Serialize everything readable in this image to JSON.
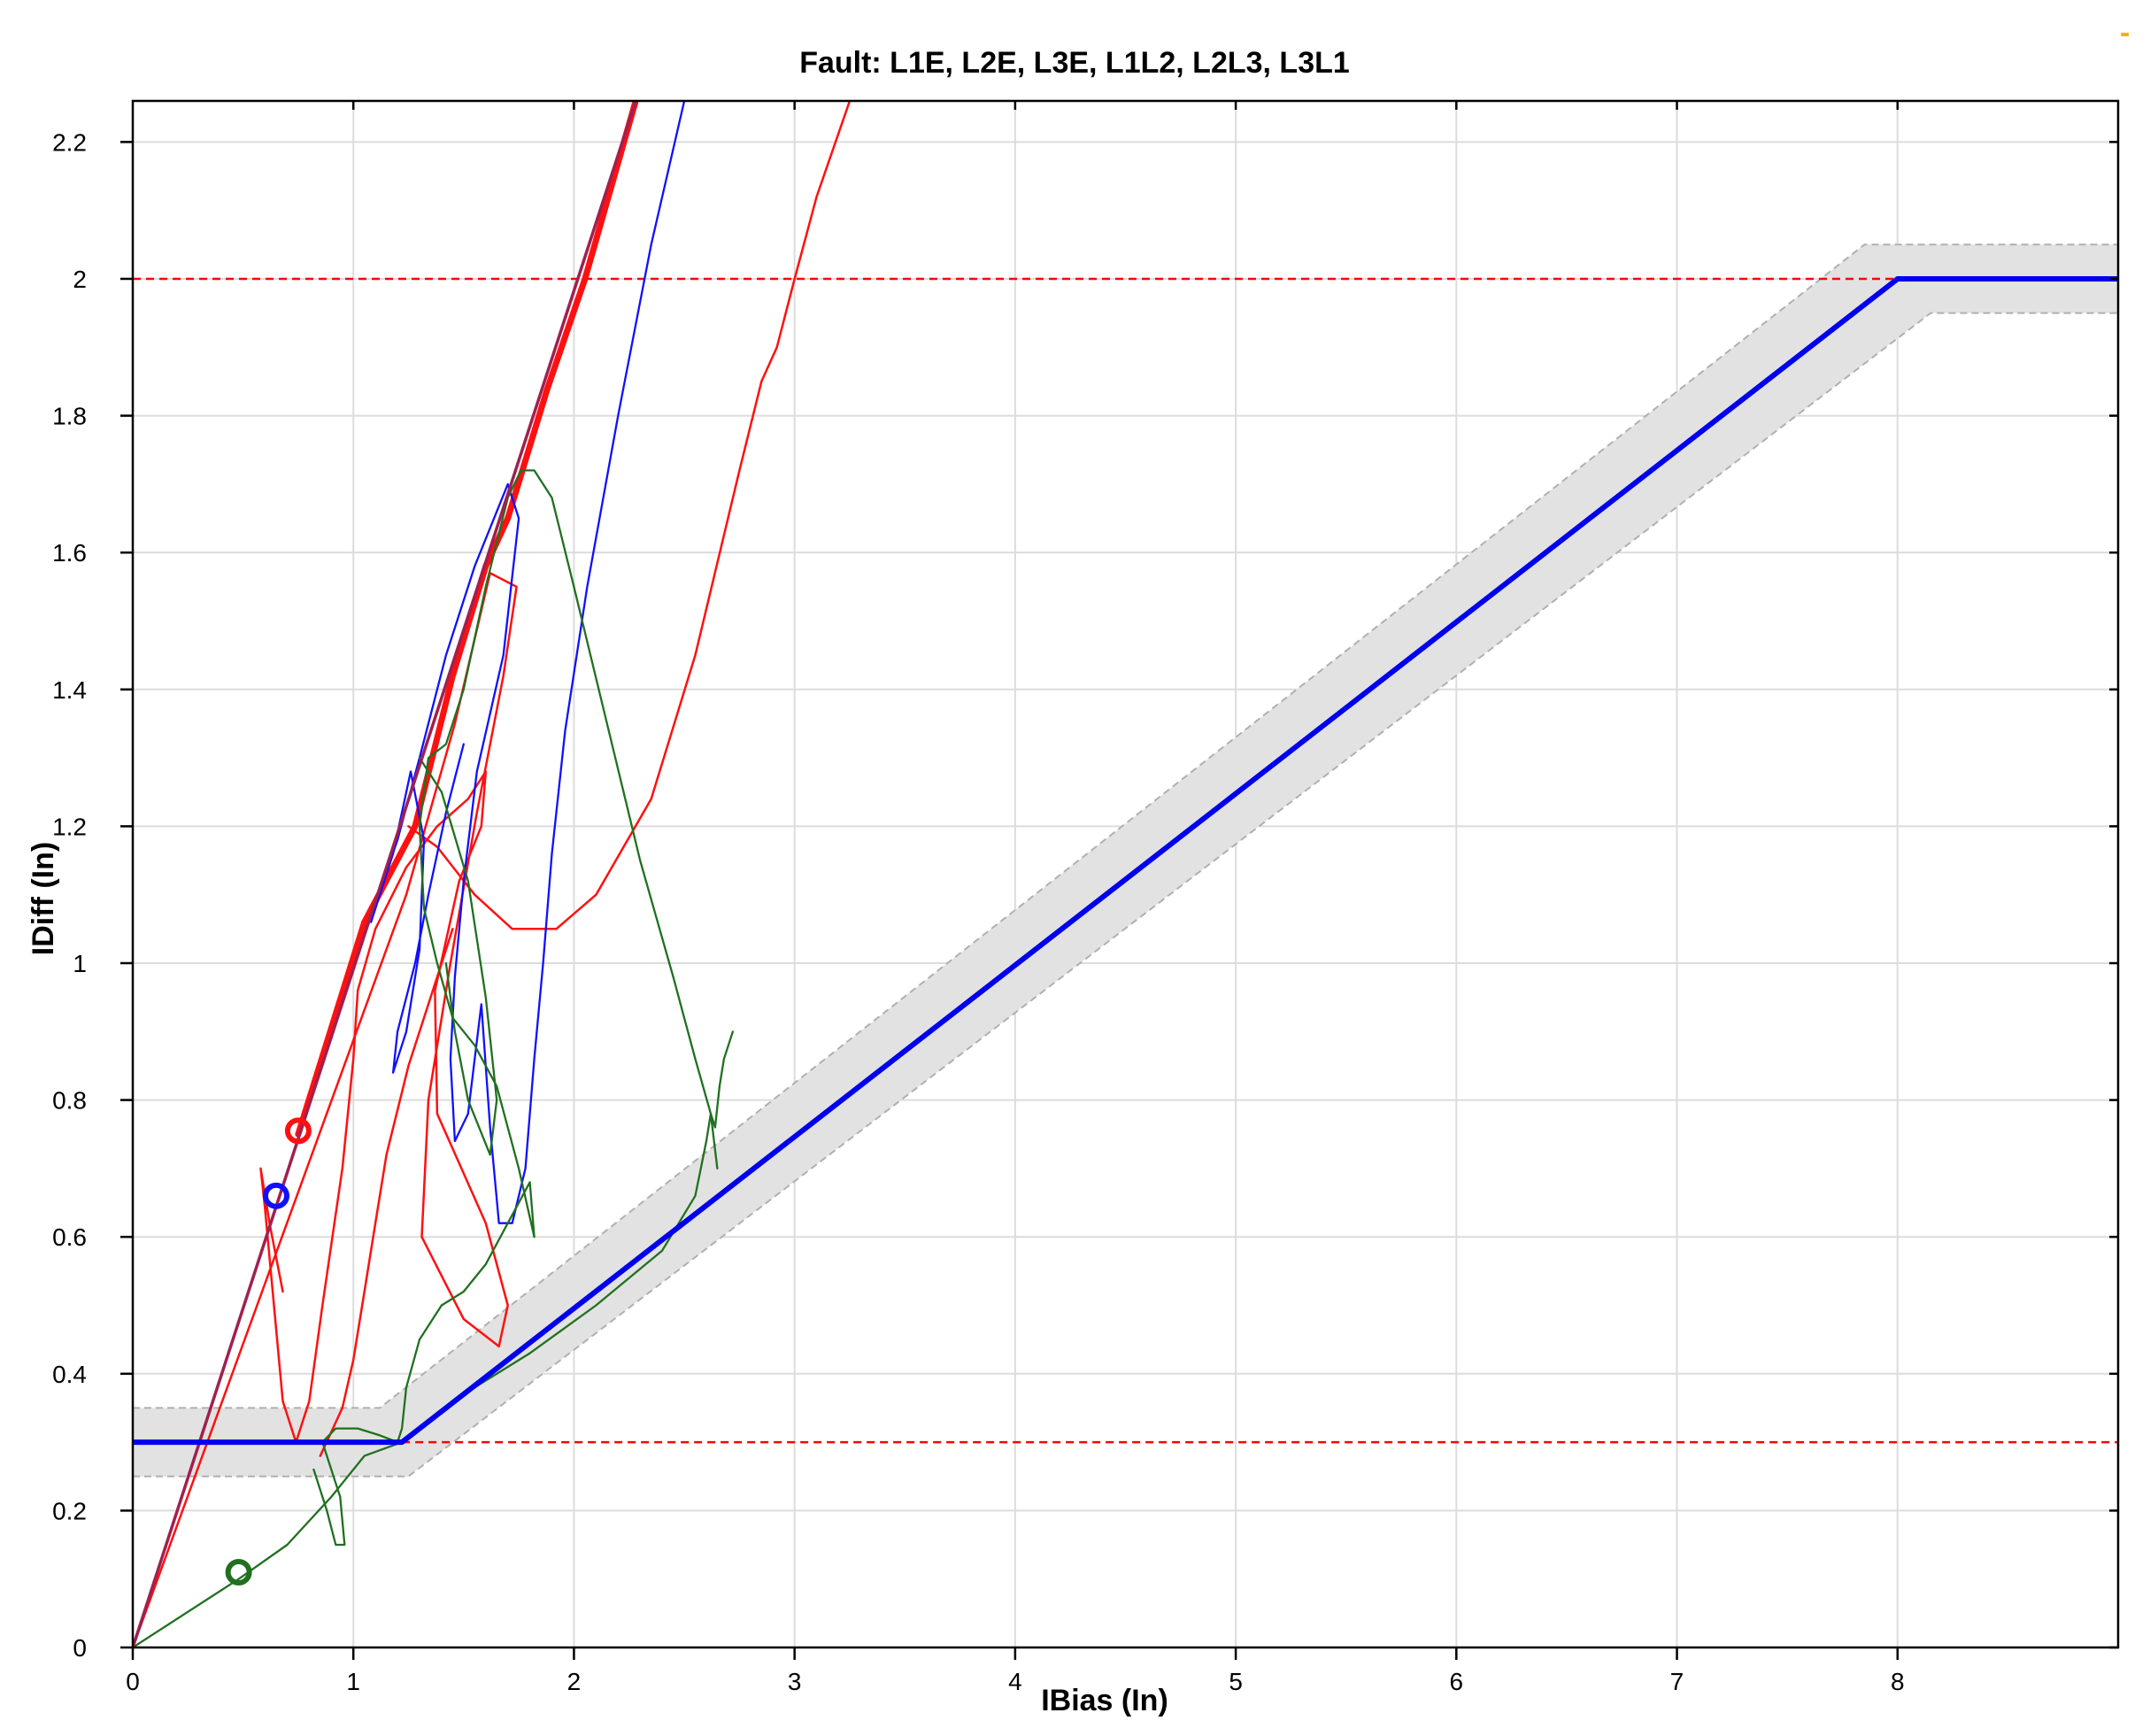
{
  "chart_data": {
    "type": "line",
    "title": "Fault: L1E, L2E, L3E, L1L2, L2L3, L3L1",
    "xlabel": "IBias (In)",
    "ylabel": "IDiff (In)",
    "xlim": [
      0,
      9
    ],
    "ylim": [
      0,
      2.26
    ],
    "x_ticks": [
      0,
      1,
      2,
      3,
      4,
      5,
      6,
      7,
      8
    ],
    "x_tick_labels": [
      "0",
      "1",
      "2",
      "3",
      "4",
      "5",
      "6",
      "7",
      "8"
    ],
    "y_ticks": [
      0,
      0.2,
      0.4,
      0.6,
      0.8,
      1.0,
      1.2,
      1.4,
      1.6,
      1.8,
      2.0,
      2.2
    ],
    "y_tick_labels": [
      "0",
      "0.2",
      "0.4",
      "0.6",
      "0.8",
      "1",
      "1.2",
      "1.4",
      "1.6",
      "1.8",
      "2",
      "2.2"
    ],
    "grid": true,
    "colors": {
      "characteristic": "#0000ee",
      "band": "#e2e2e2",
      "band_edge": "#b0b0b0",
      "limit_lines": "#ff0000",
      "red": "#ff1010",
      "blue": "#1010ff",
      "green": "#207020",
      "diagonal": "#a02050"
    },
    "characteristic": {
      "x": [
        0,
        1.22,
        8.0,
        9.0
      ],
      "y": [
        0.3,
        0.3,
        2.0,
        2.0
      ]
    },
    "tolerance_band": {
      "upper": {
        "x": [
          0,
          1.12,
          7.85,
          9.0
        ],
        "y": [
          0.35,
          0.35,
          2.05,
          2.05
        ]
      },
      "lower": {
        "x": [
          0,
          1.25,
          8.15,
          9.0
        ],
        "y": [
          0.25,
          0.25,
          1.95,
          1.95
        ]
      }
    },
    "limit_lines": [
      {
        "y": 2.0,
        "style": "dashed",
        "color": "#ff0000"
      },
      {
        "y": 0.3,
        "x_start": 1.1,
        "style": "dashed",
        "color": "#ff0000"
      }
    ],
    "series": [
      {
        "color": "#ff1010",
        "width": 2.5,
        "x": [
          0,
          1.24,
          1.46,
          1.62,
          1.74,
          1.68,
          1.56,
          1.44,
          1.34,
          1.31,
          1.5,
          1.66,
          1.7,
          1.6,
          1.38,
          1.37,
          1.48,
          1.58,
          1.6,
          1.52,
          1.38,
          1.24,
          1.1,
          1.02,
          1.0,
          0.95,
          0.86,
          0.8,
          0.74,
          0.68,
          0.64,
          0.6,
          0.58,
          0.62,
          0.68
        ],
        "y": [
          0.0,
          1.1,
          1.35,
          1.57,
          1.55,
          1.42,
          1.22,
          1.0,
          0.8,
          0.6,
          0.48,
          0.44,
          0.5,
          0.62,
          0.78,
          0.96,
          1.12,
          1.2,
          1.28,
          1.24,
          1.2,
          1.14,
          1.05,
          0.96,
          0.86,
          0.7,
          0.5,
          0.36,
          0.3,
          0.36,
          0.5,
          0.64,
          0.7,
          0.62,
          0.52
        ]
      },
      {
        "color": "#ff1010",
        "width": 2.5,
        "x": [
          1.25,
          1.38,
          1.55,
          1.72,
          1.92,
          2.1,
          2.35,
          2.55,
          2.75,
          2.85,
          2.92,
          3.0,
          3.1,
          3.25
        ],
        "y": [
          1.2,
          1.17,
          1.1,
          1.05,
          1.05,
          1.1,
          1.24,
          1.45,
          1.72,
          1.85,
          1.9,
          2.0,
          2.12,
          2.26
        ]
      },
      {
        "color": "#ff1010",
        "width": 2.5,
        "x": [
          0.85,
          0.95,
          1.0,
          1.05,
          1.1,
          1.15,
          1.25,
          1.35,
          1.45
        ],
        "y": [
          0.28,
          0.35,
          0.42,
          0.52,
          0.62,
          0.72,
          0.85,
          0.95,
          1.05
        ]
      },
      {
        "color": "#ff1010",
        "width": 7,
        "x": [
          0.75,
          1.05,
          1.28,
          1.45,
          1.6,
          1.7,
          1.88,
          2.05,
          2.28
        ],
        "y": [
          0.75,
          1.06,
          1.2,
          1.42,
          1.58,
          1.65,
          1.84,
          2.0,
          2.26
        ]
      },
      {
        "color": "#1010ff",
        "width": 2.3,
        "x": [
          1.06,
          1.2,
          1.3,
          1.42,
          1.55,
          1.7,
          1.75,
          1.68,
          1.56,
          1.5,
          1.46,
          1.44,
          1.46,
          1.52,
          1.58,
          1.62,
          1.66,
          1.72,
          1.78,
          1.82,
          1.86,
          1.9,
          1.96,
          2.06,
          2.2,
          2.35,
          2.5
        ],
        "y": [
          1.05,
          1.18,
          1.3,
          1.45,
          1.58,
          1.7,
          1.65,
          1.45,
          1.28,
          1.12,
          0.98,
          0.86,
          0.74,
          0.78,
          0.94,
          0.76,
          0.62,
          0.62,
          0.7,
          0.86,
          1.0,
          1.16,
          1.34,
          1.55,
          1.8,
          2.05,
          2.26
        ]
      },
      {
        "color": "#1010ff",
        "width": 2.3,
        "x": [
          1.08,
          1.18,
          1.26,
          1.32,
          1.3,
          1.24,
          1.18,
          1.2,
          1.28,
          1.34,
          1.42,
          1.5
        ],
        "y": [
          1.06,
          1.16,
          1.28,
          1.18,
          1.02,
          0.9,
          0.84,
          0.9,
          1.0,
          1.1,
          1.22,
          1.32
        ]
      },
      {
        "color": "#207020",
        "width": 2.3,
        "x": [
          0,
          0.48,
          0.7,
          0.9,
          1.05,
          1.22,
          1.3,
          1.5,
          1.8,
          2.1,
          2.4,
          2.55,
          2.6,
          2.62,
          2.64,
          2.66,
          2.68,
          2.7,
          2.72
        ],
        "y": [
          0.0,
          0.1,
          0.15,
          0.22,
          0.28,
          0.3,
          0.32,
          0.37,
          0.43,
          0.5,
          0.58,
          0.66,
          0.74,
          0.78,
          0.76,
          0.82,
          0.86,
          0.88,
          0.9
        ]
      },
      {
        "color": "#207020",
        "width": 2.3,
        "x": [
          0.82,
          0.88,
          0.92,
          0.96,
          0.94,
          0.88,
          0.86,
          0.92,
          1.02,
          1.12,
          1.2,
          1.22,
          1.24,
          1.3,
          1.4,
          1.5,
          1.6,
          1.7,
          1.8,
          1.82,
          1.75,
          1.65,
          1.55,
          1.45,
          1.38,
          1.32,
          1.3,
          1.34,
          1.42,
          1.5,
          1.6,
          1.7,
          1.76,
          1.82,
          1.9,
          2.0,
          2.15,
          2.3,
          2.45,
          2.55,
          2.62,
          2.65
        ],
        "y": [
          0.26,
          0.2,
          0.15,
          0.15,
          0.22,
          0.28,
          0.3,
          0.32,
          0.32,
          0.31,
          0.3,
          0.32,
          0.38,
          0.45,
          0.5,
          0.52,
          0.56,
          0.62,
          0.68,
          0.6,
          0.7,
          0.82,
          0.88,
          0.92,
          1.0,
          1.08,
          1.2,
          1.3,
          1.32,
          1.4,
          1.55,
          1.68,
          1.72,
          1.72,
          1.68,
          1.55,
          1.35,
          1.15,
          0.98,
          0.86,
          0.78,
          0.7
        ]
      },
      {
        "color": "#207020",
        "width": 2.3,
        "x": [
          1.3,
          1.4,
          1.52,
          1.6,
          1.65,
          1.62,
          1.52,
          1.46,
          1.42
        ],
        "y": [
          1.3,
          1.25,
          1.12,
          0.95,
          0.8,
          0.72,
          0.8,
          0.9,
          1.0
        ]
      },
      {
        "color": "#a02050",
        "width": 3.5,
        "x": [
          0,
          2.28
        ],
        "y": [
          0,
          2.26
        ]
      }
    ],
    "start_markers": [
      {
        "x": 0.75,
        "y": 0.755,
        "color": "#ff1010"
      },
      {
        "x": 0.65,
        "y": 0.66,
        "color": "#1010ff"
      },
      {
        "x": 0.48,
        "y": 0.11,
        "color": "#207020"
      }
    ]
  }
}
